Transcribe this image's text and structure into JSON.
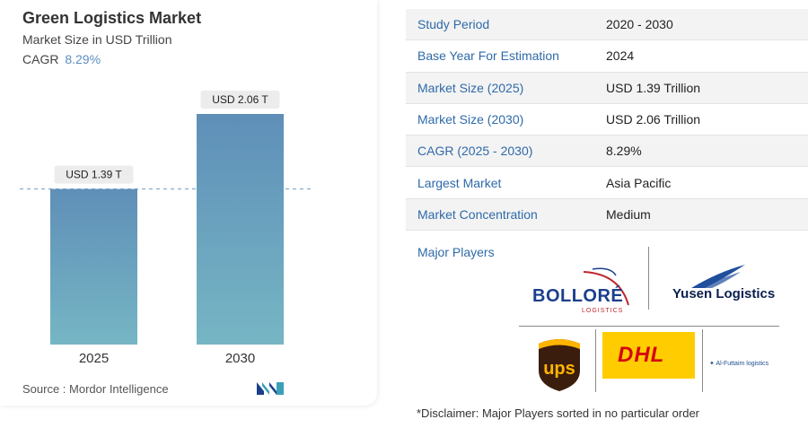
{
  "header": {
    "title": "Green Logistics Market",
    "subtitle": "Market Size in USD Trillion",
    "cagr_label": "CAGR",
    "cagr_value": "8.29%"
  },
  "chart_data": {
    "type": "bar",
    "categories": [
      "2025",
      "2030"
    ],
    "values": [
      1.39,
      2.06
    ],
    "data_labels": [
      "USD 1.39 T",
      "USD 2.06 T"
    ],
    "title": "Green Logistics Market",
    "xlabel": "",
    "ylabel": "Market Size in USD Trillion",
    "ylim": [
      0,
      2.06
    ],
    "grid": false,
    "reference_line": 1.39,
    "colors": {
      "bar_top": "#5f8fb8",
      "bar_bottom": "#76b6c4",
      "reference": "#6e9cc5",
      "label_bg": "#ececec"
    }
  },
  "source": {
    "text": "Source :   Mordor Intelligence"
  },
  "summary_table": [
    {
      "key": "Study Period",
      "value": "2020 - 2030"
    },
    {
      "key": "Base Year For Estimation",
      "value": "2024"
    },
    {
      "key": "Market Size (2025)",
      "value": "USD 1.39 Trillion"
    },
    {
      "key": "Market Size (2030)",
      "value": "USD 2.06 Trillion"
    },
    {
      "key": "CAGR (2025 - 2030)",
      "value": "8.29%"
    },
    {
      "key": "Largest Market",
      "value": "Asia Pacific"
    },
    {
      "key": "Market Concentration",
      "value": "Medium"
    }
  ],
  "major_players": {
    "label": "Major Players",
    "logos": {
      "bollore": {
        "name": "BOLLORÉ",
        "sub": "LOGISTICS"
      },
      "yusen": {
        "name": "Yusen Logistics"
      },
      "ups": {
        "name": "ups"
      },
      "dhl": {
        "name": "DHL"
      },
      "alfuttaim": {
        "name": "Al-Futtaim logistics"
      }
    }
  },
  "disclaimer": "*Disclaimer: Major Players sorted in no particular order"
}
